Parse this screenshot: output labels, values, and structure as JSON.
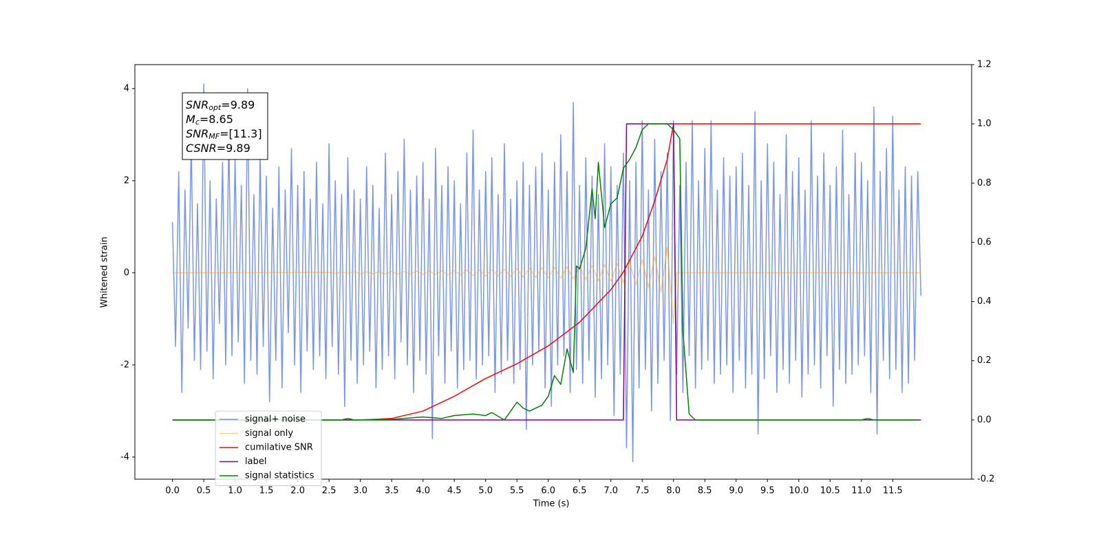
{
  "chart_data": {
    "type": "line",
    "xlabel": "Time (s)",
    "ylabel": "Whitened strain",
    "xlim": [
      -0.6,
      12.76
    ],
    "ylim": [
      -4.48,
      4.52
    ],
    "y2lim": [
      -0.2,
      1.2
    ],
    "xticks": [
      {
        "value": 0,
        "label": "0.0"
      },
      0.5,
      {
        "value": 1,
        "label": "1.0"
      },
      1.5,
      {
        "value": 2,
        "label": "2.0"
      },
      2.5,
      {
        "value": 3,
        "label": "3.0"
      },
      3.5,
      {
        "value": 4,
        "label": "4.0"
      },
      4.5,
      {
        "value": 5,
        "label": "5.0"
      },
      5.5,
      {
        "value": 6,
        "label": "6.0"
      },
      6.5,
      {
        "value": 7,
        "label": "7.0"
      },
      7.5,
      {
        "value": 8,
        "label": "8.0"
      },
      8.5,
      {
        "value": 9,
        "label": "9.0"
      },
      9.5,
      {
        "value": 10,
        "label": "10.0"
      },
      10.5,
      {
        "value": 11,
        "label": "11.0"
      },
      11.5
    ],
    "yticks": [
      -4,
      -2,
      0,
      2,
      4
    ],
    "y2ticks": [
      -0.2,
      {
        "value": 0,
        "label": "0.0"
      },
      0.2,
      0.4,
      0.6,
      0.8,
      {
        "value": 1,
        "label": "1.0"
      },
      1.2
    ],
    "grid": false,
    "legend": "lower left",
    "annotation": [
      {
        "base": "SNR",
        "sub": "opt",
        "text": "=9.89"
      },
      {
        "base": "M",
        "sub": "c",
        "text": "=8.65"
      },
      {
        "base": "SNR",
        "sub": "MF",
        "text": "=[11.3]"
      },
      {
        "base": "CSNR",
        "text": "=9.89"
      }
    ],
    "series": [
      {
        "name": "signal+ noise",
        "color": "#6a89e6",
        "opacity": 0.9,
        "x": [
          0,
          0.05,
          0.1,
          0.15,
          0.2,
          0.25,
          0.3,
          0.35,
          0.4,
          0.45,
          0.5,
          0.55,
          0.6,
          0.65,
          0.7,
          0.75,
          0.8,
          0.85,
          0.9,
          0.95,
          1,
          1.05,
          1.1,
          1.15,
          1.2,
          1.25,
          1.3,
          1.35,
          1.4,
          1.45,
          1.5,
          1.55,
          1.6,
          1.65,
          1.7,
          1.75,
          1.8,
          1.85,
          1.9,
          1.95,
          2,
          2.05,
          2.1,
          2.15,
          2.2,
          2.25,
          2.3,
          2.35,
          2.4,
          2.45,
          2.5,
          2.55,
          2.6,
          2.65,
          2.7,
          2.75,
          2.8,
          2.85,
          2.9,
          2.95,
          3,
          3.05,
          3.1,
          3.15,
          3.2,
          3.25,
          3.3,
          3.35,
          3.4,
          3.45,
          3.5,
          3.55,
          3.6,
          3.65,
          3.7,
          3.75,
          3.8,
          3.85,
          3.9,
          3.95,
          4,
          4.05,
          4.1,
          4.15,
          4.2,
          4.25,
          4.3,
          4.35,
          4.4,
          4.45,
          4.5,
          4.55,
          4.6,
          4.65,
          4.7,
          4.75,
          4.8,
          4.85,
          4.9,
          4.95,
          5,
          5.05,
          5.1,
          5.15,
          5.2,
          5.25,
          5.3,
          5.35,
          5.4,
          5.45,
          5.5,
          5.55,
          5.6,
          5.65,
          5.7,
          5.75,
          5.8,
          5.85,
          5.9,
          5.95,
          6,
          6.05,
          6.1,
          6.15,
          6.2,
          6.25,
          6.3,
          6.35,
          6.4,
          6.45,
          6.5,
          6.55,
          6.6,
          6.65,
          6.7,
          6.75,
          6.8,
          6.85,
          6.9,
          6.95,
          7,
          7.05,
          7.1,
          7.15,
          7.2,
          7.25,
          7.3,
          7.35,
          7.4,
          7.45,
          7.5,
          7.55,
          7.6,
          7.65,
          7.7,
          7.75,
          7.8,
          7.85,
          7.9,
          7.95,
          8,
          8.05,
          8.1,
          8.15,
          8.2,
          8.25,
          8.3,
          8.35,
          8.4,
          8.45,
          8.5,
          8.55,
          8.6,
          8.65,
          8.7,
          8.75,
          8.8,
          8.85,
          8.9,
          8.95,
          9,
          9.05,
          9.1,
          9.15,
          9.2,
          9.25,
          9.3,
          9.35,
          9.4,
          9.45,
          9.5,
          9.55,
          9.6,
          9.65,
          9.7,
          9.75,
          9.8,
          9.85,
          9.9,
          9.95,
          10,
          10.05,
          10.1,
          10.15,
          10.2,
          10.25,
          10.3,
          10.35,
          10.4,
          10.45,
          10.5,
          10.55,
          10.6,
          10.65,
          10.7,
          10.75,
          10.8,
          10.85,
          10.9,
          10.95,
          11,
          11.05,
          11.1,
          11.15,
          11.2,
          11.25,
          11.3,
          11.35,
          11.4,
          11.45,
          11.5,
          11.55,
          11.6,
          11.65,
          11.7,
          11.75,
          11.8,
          11.85,
          11.9,
          11.95
        ],
        "values": [
          1.1,
          -1.6,
          2.2,
          -2.6,
          1.8,
          -1.2,
          2.9,
          -1.9,
          1.5,
          -2.1,
          4.1,
          -1.7,
          2.0,
          -2.3,
          1.6,
          -1.1,
          2.4,
          -2.0,
          3.0,
          -1.8,
          2.5,
          -1.5,
          1.9,
          -2.4,
          4.0,
          -1.9,
          1.7,
          -2.2,
          2.6,
          -1.6,
          2.1,
          -2.8,
          1.4,
          -1.9,
          2.3,
          -2.5,
          1.8,
          -1.3,
          2.7,
          -2.0,
          1.9,
          -2.6,
          2.2,
          -1.7,
          1.6,
          -2.1,
          2.4,
          -1.8,
          1.5,
          -2.3,
          2.8,
          -1.6,
          2.0,
          -2.2,
          1.7,
          -2.9,
          2.5,
          -1.9,
          1.8,
          -2.4,
          1.6,
          -2.0,
          2.3,
          -1.7,
          1.9,
          -2.5,
          1.4,
          -2.1,
          2.6,
          -1.8,
          1.7,
          -2.3,
          2.2,
          -1.5,
          2.9,
          -2.0,
          1.8,
          -2.6,
          2.1,
          -1.9,
          2.4,
          -2.2,
          1.6,
          -3.6,
          2.7,
          -1.8,
          1.9,
          -2.4,
          2.3,
          -1.7,
          2.0,
          -2.5,
          1.5,
          -2.1,
          2.6,
          -1.9,
          3.1,
          -2.3,
          1.8,
          -2.0,
          2.2,
          -1.8,
          2.5,
          -2.6,
          1.7,
          -2.2,
          2.8,
          -1.9,
          1.6,
          -2.4,
          2.0,
          -2.1,
          2.4,
          -3.4,
          1.9,
          -2.0,
          2.3,
          -1.7,
          2.6,
          -2.5,
          1.8,
          -2.9,
          2.4,
          -2.0,
          3.0,
          -1.8,
          2.2,
          -2.6,
          3.7,
          -2.1,
          1.9,
          -2.4,
          2.5,
          -1.9,
          2.1,
          -2.7,
          1.7,
          -2.3,
          2.8,
          -2.0,
          2.3,
          -3.1,
          1.9,
          -2.2,
          2.6,
          -3.8,
          2.0,
          -4.1,
          2.4,
          -2.5,
          3.3,
          -2.1,
          1.8,
          -3.0,
          2.9,
          -2.4,
          2.2,
          -1.9,
          2.6,
          -3.2,
          3.3,
          -2.2,
          1.9,
          -2.6,
          2.4,
          -1.8,
          3.3,
          -2.5,
          2.0,
          -2.1,
          2.7,
          -1.9,
          3.3,
          -2.4,
          1.8,
          -2.2,
          2.5,
          -2.0,
          2.1,
          -2.6,
          2.3,
          -1.9,
          2.6,
          -2.5,
          1.9,
          -2.2,
          3.5,
          -3.5,
          2.0,
          -2.3,
          2.8,
          -1.8,
          2.4,
          -2.6,
          1.7,
          -2.1,
          3.0,
          -2.4,
          2.2,
          -1.9,
          2.5,
          -2.7,
          1.8,
          -2.2,
          3.3,
          -2.0,
          2.1,
          -2.5,
          2.6,
          -1.8,
          1.9,
          -2.9,
          2.3,
          -2.1,
          3.1,
          -2.4,
          1.7,
          -2.2,
          2.6,
          -2.0,
          2.4,
          -1.8,
          2.0,
          -2.6,
          3.6,
          -3.5,
          2.2,
          -1.9,
          2.7,
          -2.3,
          3.4,
          -2.1,
          1.8,
          -2.6,
          2.3,
          -2.4,
          2.1,
          -1.9,
          2.2,
          -0.5
        ]
      },
      {
        "name": "signal only",
        "color": "#ffa500",
        "opacity": 0.5,
        "x": [
          0,
          2.5,
          2.6,
          2.7,
          2.8,
          2.9,
          3,
          3.1,
          3.2,
          3.3,
          3.4,
          3.5,
          3.6,
          3.7,
          3.8,
          3.9,
          4,
          4.1,
          4.2,
          4.3,
          4.4,
          4.5,
          4.6,
          4.7,
          4.8,
          4.9,
          5,
          5.1,
          5.2,
          5.3,
          5.4,
          5.5,
          5.6,
          5.7,
          5.8,
          5.9,
          6,
          6.1,
          6.2,
          6.3,
          6.4,
          6.5,
          6.6,
          6.7,
          6.8,
          6.9,
          7,
          7.1,
          7.2,
          7.3,
          7.4,
          7.5,
          7.6,
          7.7,
          7.8,
          7.9,
          8,
          8.05,
          11.95
        ],
        "values": [
          0,
          0.01,
          -0.01,
          0.01,
          -0.01,
          0.02,
          -0.02,
          0.02,
          -0.02,
          0.02,
          -0.03,
          0.03,
          -0.03,
          0.03,
          -0.03,
          0.04,
          -0.04,
          0.04,
          -0.04,
          0.05,
          -0.05,
          0.05,
          -0.05,
          0.06,
          -0.06,
          0.06,
          -0.07,
          0.07,
          -0.07,
          0.08,
          -0.08,
          0.09,
          -0.09,
          0.1,
          -0.1,
          0.11,
          -0.11,
          0.12,
          -0.12,
          0.13,
          -0.14,
          0.15,
          -0.15,
          0.16,
          -0.17,
          0.18,
          -0.19,
          0.2,
          -0.22,
          0.24,
          -0.26,
          0.29,
          -0.32,
          0.36,
          -0.42,
          0.55,
          -1.1,
          0,
          0
        ]
      },
      {
        "name": "cumilative SNR",
        "color": "#ff0000",
        "axis": "y2",
        "x": [
          0,
          3,
          3.5,
          4,
          4.5,
          5,
          5.5,
          6,
          6.5,
          7,
          7.2,
          7.5,
          7.7,
          7.9,
          8,
          11.95
        ],
        "values": [
          0,
          0,
          0.005,
          0.03,
          0.08,
          0.14,
          0.19,
          0.25,
          0.33,
          0.44,
          0.5,
          0.62,
          0.74,
          0.88,
          1,
          1
        ]
      },
      {
        "name": "label",
        "color": "#800080",
        "axis": "y2",
        "x": [
          0,
          7.2,
          7.25,
          8,
          8.05,
          11.95
        ],
        "values": [
          0,
          0,
          1,
          1,
          0,
          0
        ]
      },
      {
        "name": "signal statistics",
        "color": "#008000",
        "axis": "y2",
        "x": [
          0,
          2.7,
          2.8,
          2.9,
          3.5,
          4,
          4.3,
          4.5,
          4.8,
          5,
          5.1,
          5.3,
          5.4,
          5.5,
          5.6,
          5.7,
          5.9,
          6,
          6.1,
          6.2,
          6.3,
          6.4,
          6.45,
          6.5,
          6.6,
          6.7,
          6.75,
          6.8,
          6.9,
          7,
          7.1,
          7.2,
          7.3,
          7.4,
          7.5,
          7.6,
          7.9,
          8,
          8.1,
          8.15,
          8.25,
          8.35,
          11,
          11.1,
          11.2,
          11.9
        ],
        "values": [
          0,
          0,
          0.005,
          0,
          0.002,
          0.01,
          0.005,
          0.015,
          0.02,
          0.015,
          0.025,
          0,
          0.03,
          0.06,
          0.04,
          0.03,
          0.05,
          0.08,
          0.15,
          0.12,
          0.24,
          0.16,
          0.52,
          0.51,
          0.58,
          0.78,
          0.68,
          0.87,
          0.65,
          0.73,
          0.75,
          0.85,
          0.88,
          0.92,
          0.98,
          1,
          1,
          0.98,
          0.95,
          0.3,
          0.02,
          0,
          0,
          0.005,
          0,
          0
        ]
      }
    ]
  }
}
